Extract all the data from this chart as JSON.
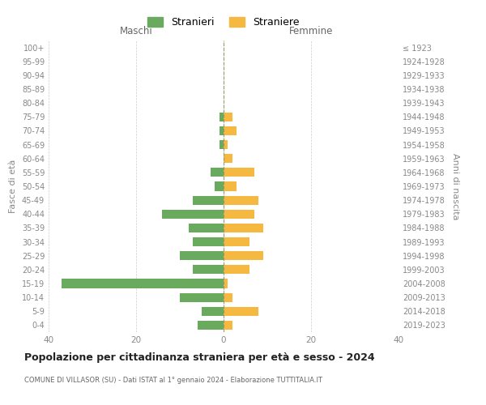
{
  "age_groups": [
    "0-4",
    "5-9",
    "10-14",
    "15-19",
    "20-24",
    "25-29",
    "30-34",
    "35-39",
    "40-44",
    "45-49",
    "50-54",
    "55-59",
    "60-64",
    "65-69",
    "70-74",
    "75-79",
    "80-84",
    "85-89",
    "90-94",
    "95-99",
    "100+"
  ],
  "birth_years": [
    "2019-2023",
    "2014-2018",
    "2009-2013",
    "2004-2008",
    "1999-2003",
    "1994-1998",
    "1989-1993",
    "1984-1988",
    "1979-1983",
    "1974-1978",
    "1969-1973",
    "1964-1968",
    "1959-1963",
    "1954-1958",
    "1949-1953",
    "1944-1948",
    "1939-1943",
    "1934-1938",
    "1929-1933",
    "1924-1928",
    "≤ 1923"
  ],
  "maschi": [
    6,
    5,
    10,
    37,
    7,
    10,
    7,
    8,
    14,
    7,
    2,
    3,
    0,
    1,
    1,
    1,
    0,
    0,
    0,
    0,
    0
  ],
  "femmine": [
    2,
    8,
    2,
    1,
    6,
    9,
    6,
    9,
    7,
    8,
    3,
    7,
    2,
    1,
    3,
    2,
    0,
    0,
    0,
    0,
    0
  ],
  "maschi_color": "#6aaa5e",
  "femmine_color": "#f5b942",
  "background_color": "#ffffff",
  "grid_color": "#cccccc",
  "title": "Popolazione per cittadinanza straniera per età e sesso - 2024",
  "subtitle": "COMUNE DI VILLASOR (SU) - Dati ISTAT al 1° gennaio 2024 - Elaborazione TUTTITALIA.IT",
  "xlabel_left": "Maschi",
  "xlabel_right": "Femmine",
  "ylabel_left": "Fasce di età",
  "ylabel_right": "Anni di nascita",
  "legend_maschi": "Stranieri",
  "legend_femmine": "Straniere",
  "xlim": 40,
  "dpi": 100,
  "figsize": [
    6.0,
    5.0
  ]
}
